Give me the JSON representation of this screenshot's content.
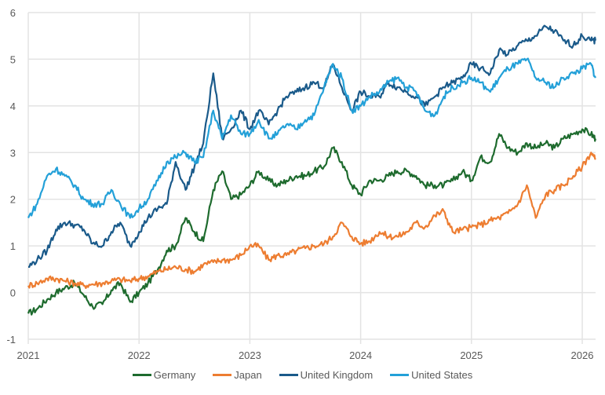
{
  "chart_data": {
    "type": "line",
    "title": "",
    "xlabel": "",
    "ylabel": "",
    "xlim": [
      2021.0,
      2026.12
    ],
    "ylim": [
      -1,
      6
    ],
    "y_ticks": [
      "6",
      "5",
      "4",
      "3",
      "2",
      "1",
      "0",
      "-1"
    ],
    "x_ticks": [
      "2021",
      "2022",
      "2023",
      "2024",
      "2025",
      "2026"
    ],
    "grid": true,
    "legend_position": "bottom",
    "x": [
      2021.0,
      2021.08,
      2021.17,
      2021.25,
      2021.33,
      2021.42,
      2021.5,
      2021.58,
      2021.67,
      2021.75,
      2021.83,
      2021.92,
      2022.0,
      2022.08,
      2022.17,
      2022.25,
      2022.33,
      2022.42,
      2022.5,
      2022.58,
      2022.67,
      2022.75,
      2022.83,
      2022.92,
      2023.0,
      2023.08,
      2023.17,
      2023.25,
      2023.33,
      2023.42,
      2023.5,
      2023.58,
      2023.67,
      2023.75,
      2023.83,
      2023.92,
      2024.0,
      2024.08,
      2024.17,
      2024.25,
      2024.33,
      2024.42,
      2024.5,
      2024.58,
      2024.67,
      2024.75,
      2024.83,
      2024.92,
      2025.0,
      2025.08,
      2025.17,
      2025.25,
      2025.33,
      2025.42,
      2025.5,
      2025.58,
      2025.67,
      2025.75,
      2025.83,
      2025.92,
      2026.0,
      2026.08,
      2026.12
    ],
    "series": [
      {
        "name": "Germany",
        "color": "#1e6b2e",
        "values": [
          -0.45,
          -0.35,
          -0.15,
          0.0,
          0.1,
          0.2,
          -0.05,
          -0.3,
          -0.25,
          0.05,
          0.2,
          -0.2,
          0.0,
          0.2,
          0.5,
          0.9,
          1.0,
          1.6,
          1.3,
          1.1,
          2.2,
          2.6,
          2.0,
          2.1,
          2.3,
          2.6,
          2.4,
          2.3,
          2.4,
          2.5,
          2.5,
          2.6,
          2.7,
          3.1,
          2.8,
          2.3,
          2.1,
          2.4,
          2.4,
          2.5,
          2.6,
          2.6,
          2.5,
          2.3,
          2.3,
          2.3,
          2.4,
          2.6,
          2.4,
          2.9,
          2.8,
          3.4,
          3.1,
          3.0,
          3.2,
          3.1,
          3.2,
          3.1,
          3.3,
          3.4,
          3.5,
          3.4,
          3.3
        ]
      },
      {
        "name": "Japan",
        "color": "#ed7d31",
        "values": [
          0.15,
          0.2,
          0.3,
          0.3,
          0.25,
          0.2,
          0.15,
          0.18,
          0.2,
          0.25,
          0.28,
          0.25,
          0.3,
          0.35,
          0.45,
          0.5,
          0.55,
          0.5,
          0.45,
          0.6,
          0.65,
          0.7,
          0.7,
          0.8,
          1.0,
          1.0,
          0.7,
          0.8,
          0.8,
          0.9,
          0.95,
          1.0,
          1.05,
          1.2,
          1.5,
          1.2,
          1.05,
          1.1,
          1.3,
          1.2,
          1.2,
          1.3,
          1.5,
          1.4,
          1.65,
          1.75,
          1.3,
          1.35,
          1.4,
          1.45,
          1.55,
          1.6,
          1.7,
          1.9,
          2.3,
          1.6,
          2.1,
          2.2,
          2.3,
          2.5,
          2.7,
          3.0,
          2.85
        ]
      },
      {
        "name": "United Kingdom",
        "color": "#1a5a8a",
        "values": [
          0.55,
          0.7,
          0.9,
          1.35,
          1.5,
          1.45,
          1.35,
          1.05,
          1.0,
          1.3,
          1.5,
          1.0,
          1.3,
          1.6,
          1.8,
          1.9,
          2.8,
          2.2,
          2.7,
          3.2,
          4.7,
          3.3,
          3.5,
          3.9,
          3.5,
          3.9,
          3.6,
          3.9,
          4.2,
          4.3,
          4.4,
          4.5,
          4.4,
          4.9,
          4.4,
          3.9,
          4.3,
          4.2,
          4.2,
          4.5,
          4.4,
          4.3,
          4.2,
          4.0,
          4.2,
          4.4,
          4.5,
          4.6,
          4.9,
          4.8,
          4.7,
          5.2,
          5.1,
          5.3,
          5.4,
          5.5,
          5.7,
          5.6,
          5.4,
          5.3,
          5.5,
          5.4,
          5.4
        ]
      },
      {
        "name": "United States",
        "color": "#23a0d8",
        "values": [
          1.6,
          1.9,
          2.5,
          2.65,
          2.5,
          2.3,
          2.0,
          1.9,
          1.9,
          2.2,
          1.9,
          1.6,
          1.8,
          2.0,
          2.4,
          2.8,
          2.9,
          3.0,
          2.8,
          2.9,
          3.9,
          3.3,
          3.8,
          3.4,
          3.4,
          3.7,
          3.3,
          3.4,
          3.6,
          3.5,
          3.7,
          3.8,
          4.4,
          4.9,
          4.6,
          3.9,
          4.0,
          4.2,
          4.3,
          4.5,
          4.6,
          4.4,
          4.3,
          3.9,
          3.8,
          4.2,
          4.4,
          4.5,
          4.6,
          4.5,
          4.3,
          4.6,
          4.8,
          4.9,
          5.0,
          4.6,
          4.5,
          4.4,
          4.6,
          4.7,
          4.8,
          4.9,
          4.6
        ]
      }
    ]
  },
  "legend": {
    "items": [
      {
        "label": "Germany",
        "color": "#1e6b2e"
      },
      {
        "label": "Japan",
        "color": "#ed7d31"
      },
      {
        "label": "United Kingdom",
        "color": "#1a5a8a"
      },
      {
        "label": "United States",
        "color": "#23a0d8"
      }
    ]
  }
}
